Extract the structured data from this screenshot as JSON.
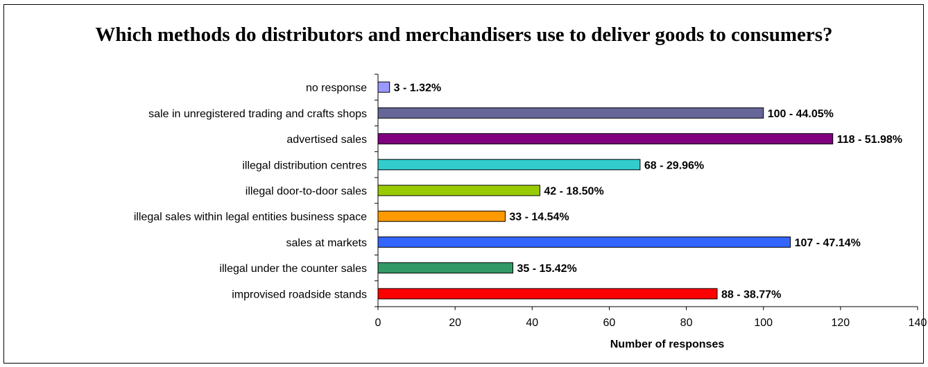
{
  "chart_data": {
    "type": "bar",
    "orientation": "horizontal",
    "title": "Which methods do distributors and merchandisers use to deliver goods to consumers?",
    "xlabel": "Number of responses",
    "ylabel": "",
    "xlim": [
      0,
      140
    ],
    "xticks": [
      0,
      20,
      40,
      60,
      80,
      100,
      120,
      140
    ],
    "grid": false,
    "categories": [
      "no response",
      "sale in unregistered trading and crafts shops",
      "advertised sales",
      "illegal distribution centres",
      "illegal door-to-door sales",
      "illegal sales within legal entities business space",
      "sales at markets",
      "illegal under the counter sales",
      "improvised roadside stands"
    ],
    "values": [
      3,
      100,
      118,
      68,
      42,
      33,
      107,
      35,
      88
    ],
    "data_labels": [
      "3 - 1.32%",
      "100 - 44.05%",
      "118 - 51.98%",
      "68 - 29.96%",
      "42 - 18.50%",
      "33 - 14.54%",
      "107 - 47.14%",
      "35 - 15.42%",
      "88 - 38.77%"
    ],
    "colors": [
      "#9999ff",
      "#666699",
      "#800080",
      "#33cccc",
      "#99cc00",
      "#ff9900",
      "#3366ff",
      "#339966",
      "#ff0000"
    ]
  }
}
